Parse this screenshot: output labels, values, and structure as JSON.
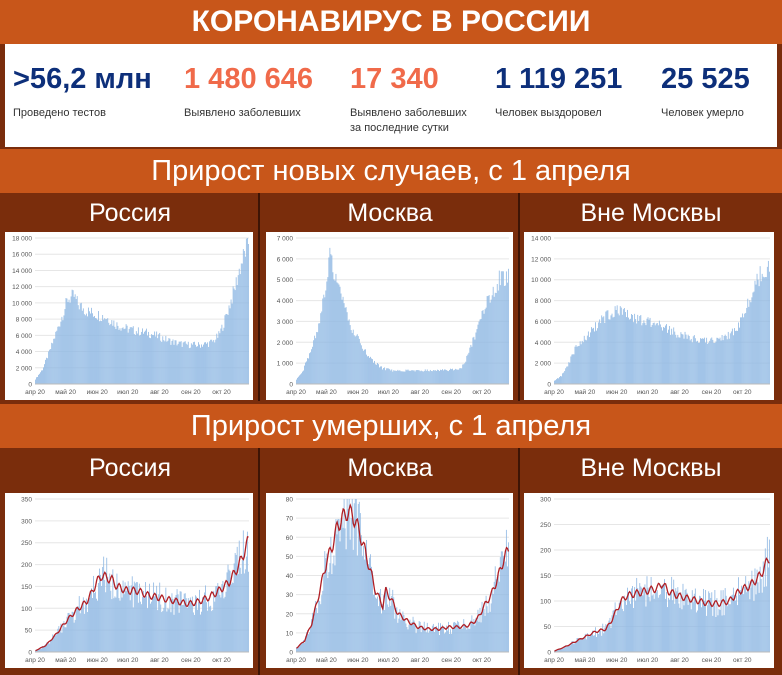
{
  "header": {
    "title": "КОРОНАВИРУС В РОССИИ"
  },
  "stats": [
    {
      "value": ">56,2 млн",
      "label": "Проведено тестов",
      "color": "#0d2f7a"
    },
    {
      "value": "1 480 646",
      "label": "Выявлено заболевших",
      "color": "#f06a4a"
    },
    {
      "value": "17 340",
      "label": "Выявлено заболевших за последние сутки",
      "color": "#f06a4a"
    },
    {
      "value": "1 119 251",
      "label": "Человек выздоровел",
      "color": "#0d2f7a"
    },
    {
      "value": "25 525",
      "label": "Человек умерло",
      "color": "#0d2f7a"
    }
  ],
  "sections": {
    "cases_title": "Прирост новых случаев, с 1 апреля",
    "deaths_title": "Прирост умерших, с 1 апреля",
    "panels": [
      "Россия",
      "Москва",
      "Вне Москвы"
    ]
  },
  "colors": {
    "bars": "#8fb8e3",
    "avg_line": "#b01e24",
    "axis_text": "#555555"
  },
  "chart_data": [
    {
      "type": "bar",
      "panel": "Россия",
      "metric": "cases",
      "ylim": [
        0,
        18000
      ],
      "yticks": [
        "0",
        "2 000",
        "4 000",
        "6 000",
        "8 000",
        "10 000",
        "12 000",
        "14 000",
        "16 000",
        "18 000"
      ],
      "xticks": [
        "апр 20",
        "май 20",
        "июн 20",
        "июл 20",
        "авг 20",
        "сен 20",
        "окт 20"
      ],
      "profile": [
        [
          0,
          600
        ],
        [
          7,
          1800
        ],
        [
          14,
          4000
        ],
        [
          21,
          6500
        ],
        [
          28,
          9000
        ],
        [
          32,
          10500
        ],
        [
          38,
          10800
        ],
        [
          42,
          9800
        ],
        [
          50,
          9000
        ],
        [
          60,
          8600
        ],
        [
          70,
          8200
        ],
        [
          80,
          7300
        ],
        [
          90,
          6800
        ],
        [
          100,
          6500
        ],
        [
          110,
          6300
        ],
        [
          120,
          5900
        ],
        [
          130,
          5400
        ],
        [
          140,
          5000
        ],
        [
          150,
          4850
        ],
        [
          160,
          4800
        ],
        [
          170,
          5000
        ],
        [
          175,
          5300
        ],
        [
          180,
          6000
        ],
        [
          185,
          7500
        ],
        [
          190,
          9500
        ],
        [
          195,
          11500
        ],
        [
          200,
          14000
        ],
        [
          205,
          16000
        ],
        [
          209,
          17500
        ]
      ]
    },
    {
      "type": "bar",
      "panel": "Москва",
      "metric": "cases",
      "ylim": [
        0,
        7000
      ],
      "yticks": [
        "0",
        "1 000",
        "2 000",
        "3 000",
        "4 000",
        "5 000",
        "6 000",
        "7 000"
      ],
      "xticks": [
        "апр 20",
        "май 20",
        "июн 20",
        "июл 20",
        "авг 20",
        "сен 20",
        "окт 20"
      ],
      "profile": [
        [
          0,
          200
        ],
        [
          7,
          700
        ],
        [
          14,
          1600
        ],
        [
          21,
          2600
        ],
        [
          28,
          4500
        ],
        [
          33,
          6200
        ],
        [
          38,
          5200
        ],
        [
          45,
          4000
        ],
        [
          55,
          2600
        ],
        [
          65,
          1800
        ],
        [
          75,
          1100
        ],
        [
          85,
          750
        ],
        [
          95,
          650
        ],
        [
          110,
          650
        ],
        [
          130,
          650
        ],
        [
          150,
          680
        ],
        [
          160,
          700
        ],
        [
          165,
          900
        ],
        [
          170,
          1500
        ],
        [
          175,
          2200
        ],
        [
          180,
          2800
        ],
        [
          187,
          3800
        ],
        [
          195,
          4500
        ],
        [
          200,
          5000
        ],
        [
          209,
          5200
        ]
      ]
    },
    {
      "type": "bar",
      "panel": "Вне Москвы",
      "metric": "cases",
      "ylim": [
        0,
        14000
      ],
      "yticks": [
        "0",
        "2 000",
        "4 000",
        "6 000",
        "8 000",
        "10 000",
        "12 000",
        "14 000"
      ],
      "xticks": [
        "апр 20",
        "май 20",
        "июн 20",
        "июл 20",
        "авг 20",
        "сен 20",
        "окт 20"
      ],
      "profile": [
        [
          0,
          300
        ],
        [
          7,
          800
        ],
        [
          14,
          2000
        ],
        [
          21,
          3500
        ],
        [
          30,
          4500
        ],
        [
          40,
          5500
        ],
        [
          50,
          6500
        ],
        [
          60,
          7000
        ],
        [
          65,
          7200
        ],
        [
          70,
          6600
        ],
        [
          80,
          6200
        ],
        [
          90,
          6000
        ],
        [
          100,
          5700
        ],
        [
          110,
          5300
        ],
        [
          120,
          4800
        ],
        [
          130,
          4500
        ],
        [
          140,
          4200
        ],
        [
          150,
          4100
        ],
        [
          160,
          4300
        ],
        [
          170,
          4700
        ],
        [
          175,
          5100
        ],
        [
          180,
          5800
        ],
        [
          185,
          6800
        ],
        [
          190,
          8000
        ],
        [
          195,
          9500
        ],
        [
          200,
          10500
        ],
        [
          209,
          11500
        ]
      ]
    },
    {
      "type": "bar",
      "panel": "Россия",
      "metric": "deaths",
      "ylim": [
        0,
        350
      ],
      "moving_average": true,
      "yticks": [
        "0",
        "50",
        "100",
        "150",
        "200",
        "250",
        "300",
        "350"
      ],
      "xticks": [
        "апр 20",
        "май 20",
        "июн 20",
        "июл 20",
        "авг 20",
        "сен 20",
        "окт 20"
      ],
      "profile": [
        [
          0,
          3
        ],
        [
          10,
          15
        ],
        [
          20,
          40
        ],
        [
          30,
          70
        ],
        [
          40,
          95
        ],
        [
          50,
          115
        ],
        [
          55,
          135
        ],
        [
          60,
          160
        ],
        [
          65,
          175
        ],
        [
          70,
          170
        ],
        [
          75,
          165
        ],
        [
          80,
          150
        ],
        [
          90,
          140
        ],
        [
          100,
          140
        ],
        [
          110,
          130
        ],
        [
          120,
          125
        ],
        [
          130,
          120
        ],
        [
          140,
          115
        ],
        [
          150,
          110
        ],
        [
          160,
          115
        ],
        [
          170,
          125
        ],
        [
          180,
          140
        ],
        [
          190,
          160
        ],
        [
          200,
          200
        ],
        [
          205,
          230
        ],
        [
          209,
          255
        ]
      ]
    },
    {
      "type": "bar",
      "panel": "Москва",
      "metric": "deaths",
      "ylim": [
        0,
        80
      ],
      "moving_average": true,
      "yticks": [
        "0",
        "10",
        "20",
        "30",
        "40",
        "50",
        "60",
        "70",
        "80"
      ],
      "xticks": [
        "апр 20",
        "май 20",
        "июн 20",
        "июл 20",
        "авг 20",
        "сен 20",
        "окт 20"
      ],
      "profile": [
        [
          0,
          2
        ],
        [
          8,
          6
        ],
        [
          15,
          15
        ],
        [
          22,
          30
        ],
        [
          30,
          48
        ],
        [
          35,
          55
        ],
        [
          40,
          65
        ],
        [
          45,
          70
        ],
        [
          50,
          73
        ],
        [
          55,
          72
        ],
        [
          62,
          63
        ],
        [
          70,
          48
        ],
        [
          78,
          32
        ],
        [
          85,
          24
        ],
        [
          88,
          32
        ],
        [
          93,
          28
        ],
        [
          100,
          20
        ],
        [
          110,
          16
        ],
        [
          120,
          13
        ],
        [
          130,
          12
        ],
        [
          140,
          12
        ],
        [
          150,
          13
        ],
        [
          160,
          13
        ],
        [
          170,
          14
        ],
        [
          178,
          17
        ],
        [
          185,
          24
        ],
        [
          192,
          30
        ],
        [
          198,
          38
        ],
        [
          204,
          48
        ],
        [
          209,
          54
        ]
      ]
    },
    {
      "type": "bar",
      "panel": "Вне Москвы",
      "metric": "deaths",
      "ylim": [
        0,
        300
      ],
      "moving_average": true,
      "yticks": [
        "0",
        "50",
        "100",
        "150",
        "200",
        "250",
        "300"
      ],
      "xticks": [
        "апр 20",
        "май 20",
        "июн 20",
        "июл 20",
        "авг 20",
        "сен 20",
        "окт 20"
      ],
      "profile": [
        [
          0,
          2
        ],
        [
          10,
          10
        ],
        [
          20,
          20
        ],
        [
          30,
          30
        ],
        [
          40,
          40
        ],
        [
          50,
          45
        ],
        [
          55,
          60
        ],
        [
          60,
          80
        ],
        [
          65,
          100
        ],
        [
          70,
          110
        ],
        [
          80,
          115
        ],
        [
          90,
          120
        ],
        [
          100,
          125
        ],
        [
          105,
          135
        ],
        [
          110,
          120
        ],
        [
          120,
          110
        ],
        [
          130,
          105
        ],
        [
          140,
          100
        ],
        [
          150,
          95
        ],
        [
          160,
          95
        ],
        [
          170,
          100
        ],
        [
          180,
          120
        ],
        [
          190,
          130
        ],
        [
          200,
          150
        ],
        [
          205,
          170
        ],
        [
          209,
          185
        ]
      ]
    }
  ]
}
